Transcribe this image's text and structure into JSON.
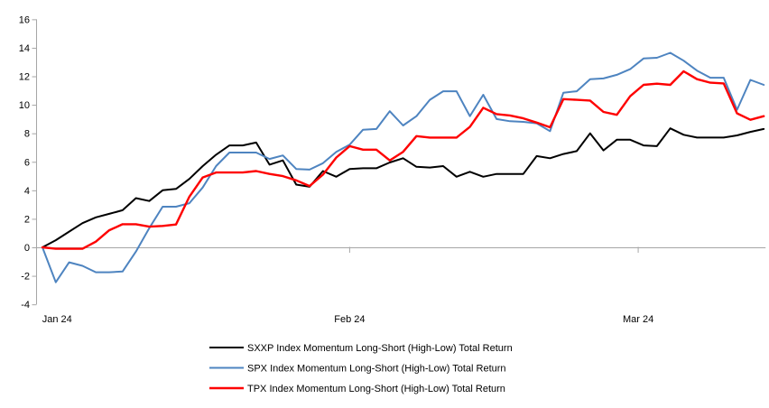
{
  "chart_data": {
    "type": "line",
    "title": "",
    "xlabel": "",
    "ylabel": "",
    "ylim": [
      -4,
      16
    ],
    "y_ticks": [
      16,
      14,
      12,
      10,
      8,
      6,
      4,
      2,
      0,
      -2,
      -4
    ],
    "x_axis": {
      "tick_labels": [
        "Jan 24",
        "Feb 24",
        "Mar 24"
      ],
      "label_indices": [
        1.1,
        23,
        44.6
      ],
      "tickmark_indices": [
        23,
        44.6
      ]
    },
    "grid": "zero-line-only",
    "legend_position": "bottom",
    "axis_color": "#a6a6a6",
    "text_color": "#000000",
    "series": [
      {
        "id": "sxxp",
        "name": "SXXP Index Momentum Long-Short (High-Low) Total Return",
        "color": "#000000",
        "width": 2,
        "values": [
          0.0,
          0.5,
          1.1,
          1.7,
          2.1,
          2.35,
          2.6,
          3.45,
          3.25,
          4.0,
          4.1,
          4.8,
          5.7,
          6.5,
          7.15,
          7.15,
          7.35,
          5.8,
          6.1,
          4.4,
          4.25,
          5.35,
          4.95,
          5.5,
          5.55,
          5.55,
          5.95,
          6.25,
          5.65,
          5.6,
          5.7,
          4.95,
          5.3,
          4.95,
          5.15,
          5.15,
          5.15,
          6.4,
          6.25,
          6.55,
          6.75,
          8.0,
          6.8,
          7.55,
          7.55,
          7.15,
          7.1,
          8.35,
          7.9,
          7.7,
          7.7,
          7.7,
          7.85,
          8.1,
          8.3
        ]
      },
      {
        "id": "spx",
        "name": "SPX Index Momentum Long-Short (High-Low) Total Return",
        "color": "#4e84c0",
        "width": 2,
        "values": [
          0.0,
          -2.45,
          -1.05,
          -1.3,
          -1.75,
          -1.75,
          -1.7,
          -0.3,
          1.35,
          2.85,
          2.85,
          3.1,
          4.2,
          5.7,
          6.65,
          6.65,
          6.65,
          6.2,
          6.45,
          5.5,
          5.45,
          5.9,
          6.7,
          7.2,
          8.25,
          8.3,
          9.55,
          8.55,
          9.2,
          10.35,
          10.95,
          10.95,
          9.2,
          10.7,
          9.0,
          8.85,
          8.8,
          8.7,
          8.15,
          10.85,
          10.95,
          11.8,
          11.85,
          12.1,
          12.5,
          13.25,
          13.3,
          13.65,
          13.1,
          12.4,
          11.9,
          11.9,
          9.65,
          11.75,
          11.4
        ]
      },
      {
        "id": "tpx",
        "name": "TPX Index Momentum Long-Short (High-Low) Total Return",
        "color": "#fe0000",
        "width": 2.4,
        "values": [
          0.0,
          -0.1,
          -0.1,
          -0.1,
          0.4,
          1.2,
          1.62,
          1.62,
          1.45,
          1.5,
          1.6,
          3.55,
          4.9,
          5.25,
          5.25,
          5.25,
          5.35,
          5.15,
          5.0,
          4.7,
          4.3,
          5.1,
          6.3,
          7.1,
          6.85,
          6.85,
          6.1,
          6.7,
          7.8,
          7.7,
          7.7,
          7.7,
          8.45,
          9.79,
          9.35,
          9.25,
          9.05,
          8.75,
          8.42,
          10.4,
          10.35,
          10.3,
          9.5,
          9.3,
          10.6,
          11.4,
          11.48,
          11.4,
          12.35,
          11.8,
          11.55,
          11.5,
          9.4,
          8.95,
          9.2
        ]
      }
    ]
  }
}
